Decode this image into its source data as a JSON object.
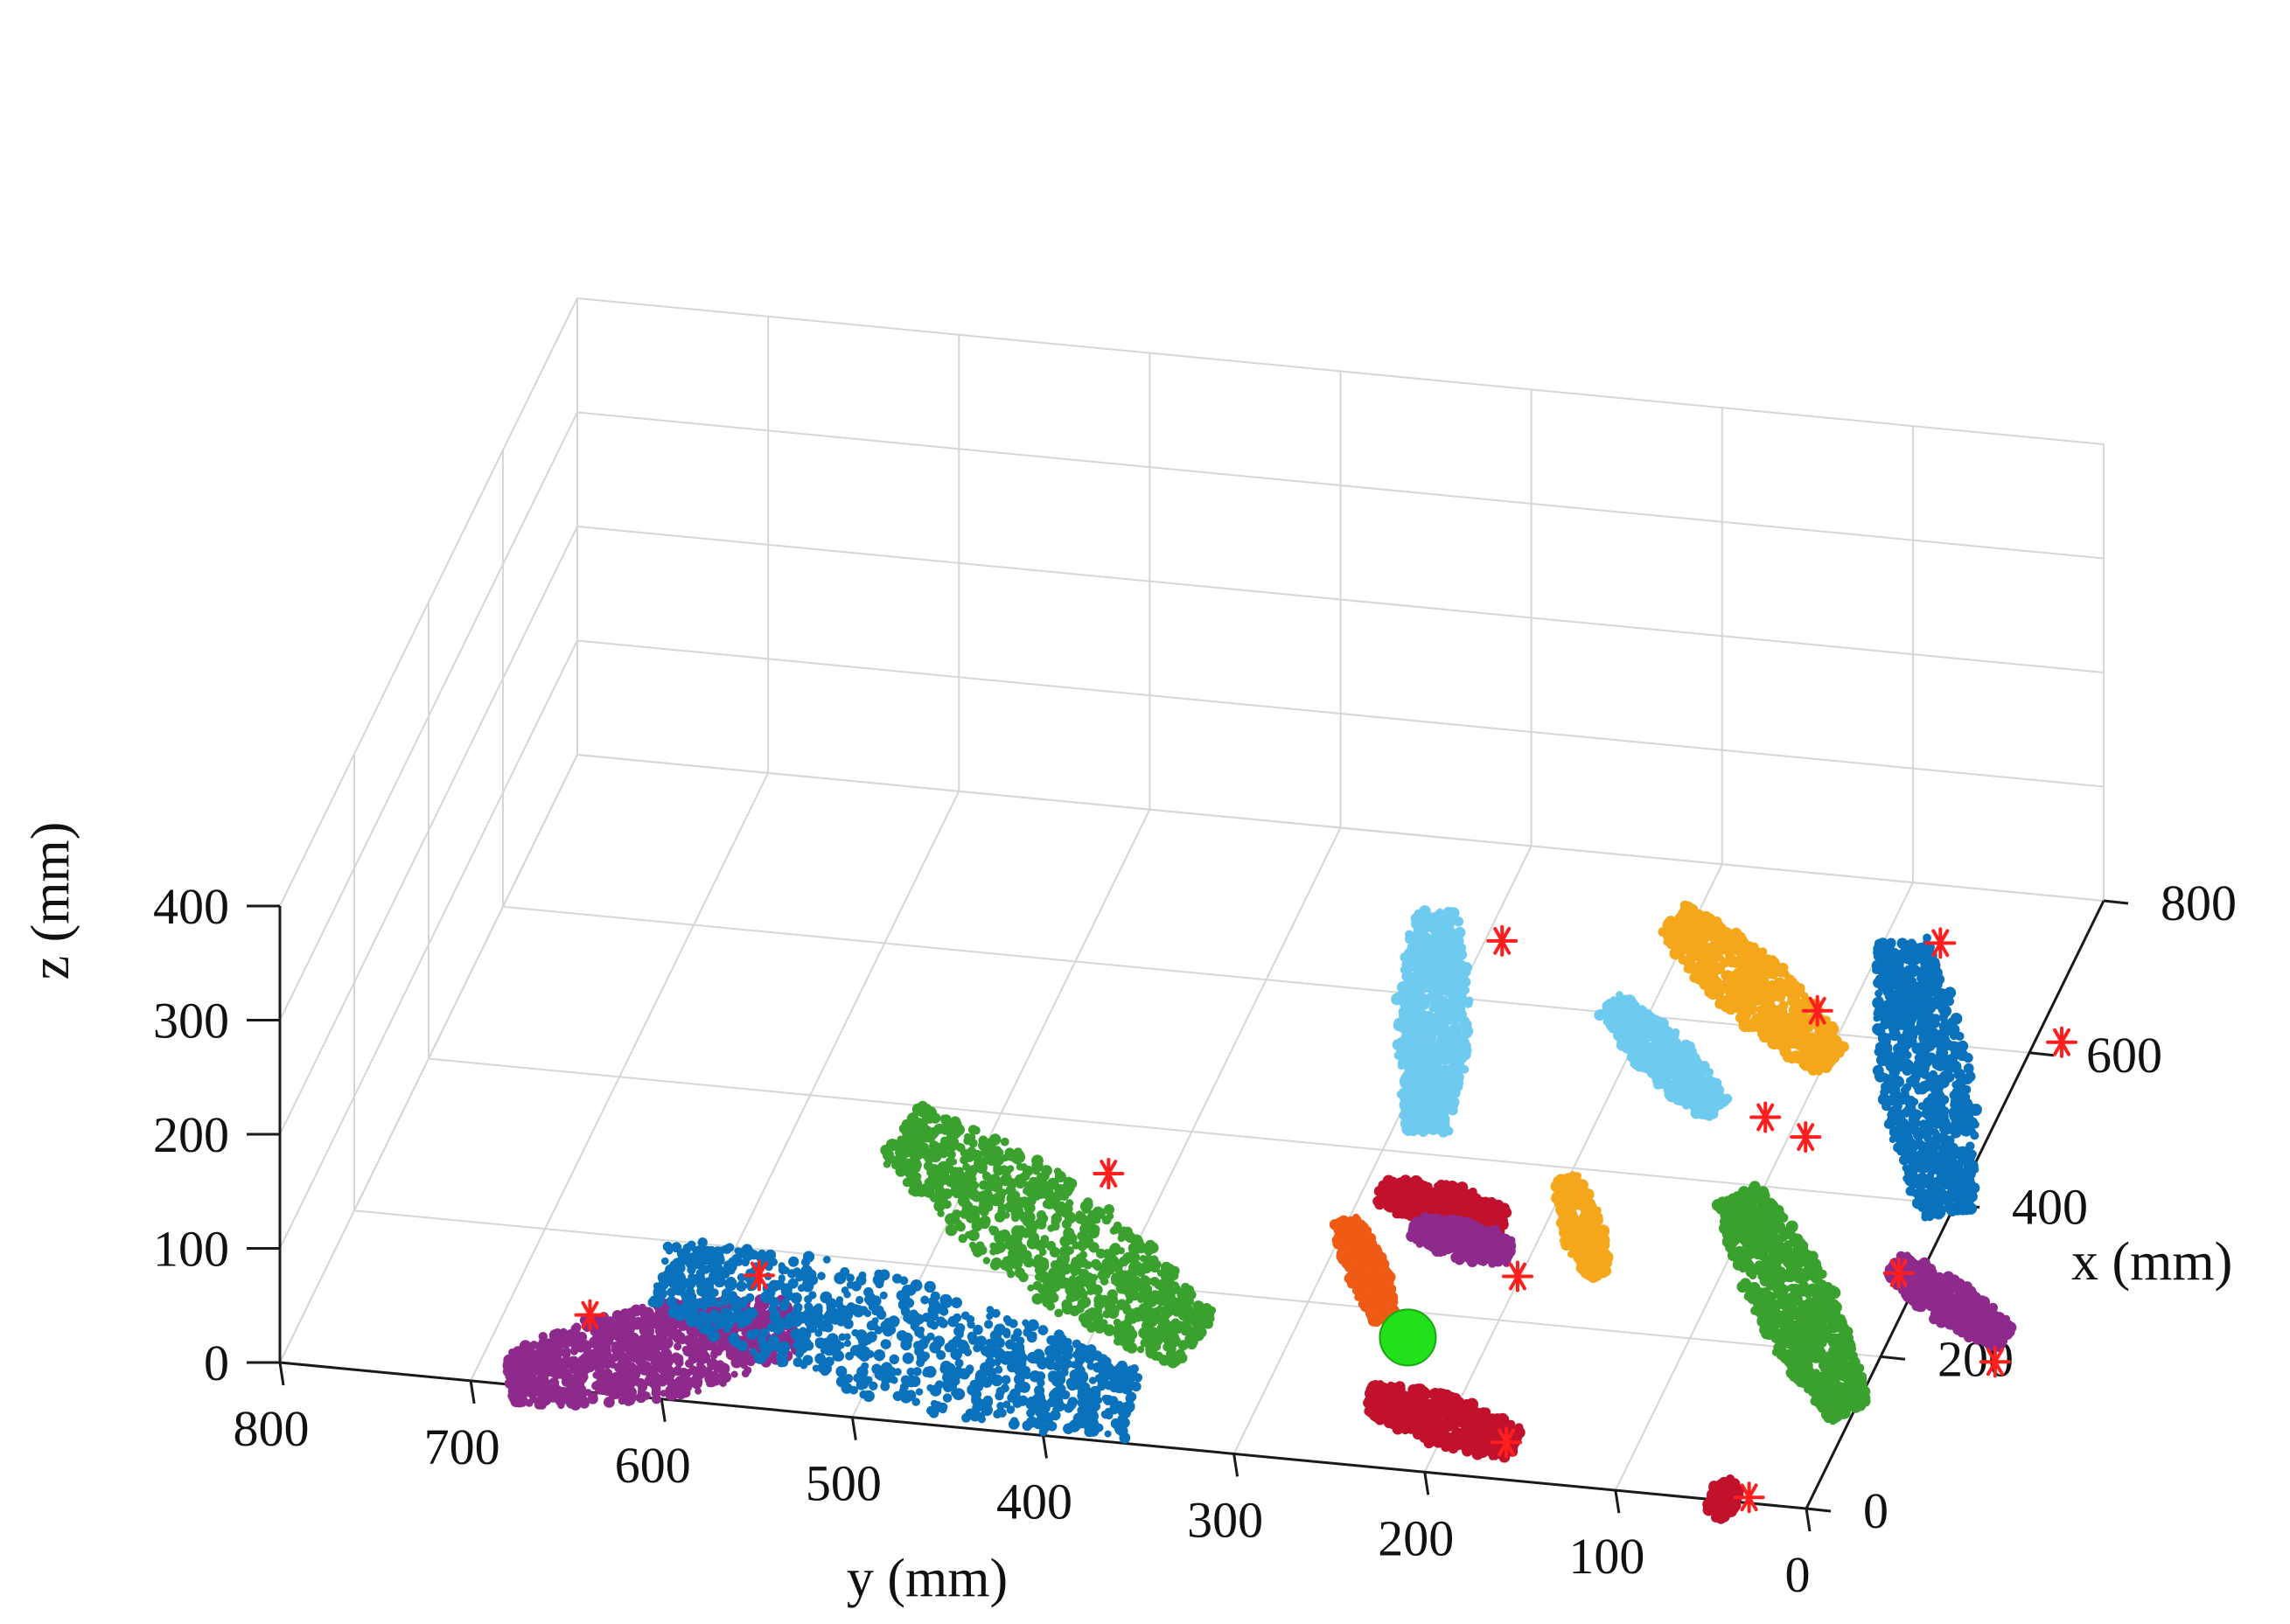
{
  "chart_data": {
    "type": "scatter",
    "subtype": "3d-point-cloud",
    "xlabel": "x (mm)",
    "ylabel": "y (mm)",
    "zlabel": "z (mm)",
    "xlim": [
      0,
      800
    ],
    "ylim": [
      0,
      800
    ],
    "zlim": [
      0,
      400
    ],
    "x_ticks": [
      "0",
      "200",
      "400",
      "600",
      "800"
    ],
    "y_ticks": [
      "0",
      "100",
      "200",
      "300",
      "400",
      "500",
      "600",
      "700",
      "800"
    ],
    "z_ticks": [
      "0",
      "100",
      "200",
      "300",
      "400"
    ],
    "grid": true,
    "legend": "none",
    "clusters": [
      {
        "color": "#8e2a8c",
        "x": [
          0,
          100
        ],
        "y": [
          680,
          550
        ],
        "z": 5
      },
      {
        "color": "#0a72bd",
        "x": [
          150,
          40
        ],
        "y": [
          630,
          360
        ],
        "z": 5
      },
      {
        "color": "#3aa12e",
        "x": [
          360,
          130
        ],
        "y": [
          545,
          345
        ],
        "z": 5
      },
      {
        "color": "#6fcaef",
        "x": [
          700,
          420
        ],
        "y": [
          330,
          280
        ],
        "z": 5
      },
      {
        "color": "#f4a71b",
        "x": [
          720,
          560
        ],
        "y": [
          210,
          95
        ],
        "z": 5
      },
      {
        "color": "#6fcaef",
        "x": [
          600,
          480
        ],
        "y": [
          220,
          140
        ],
        "z": 8
      },
      {
        "color": "#0a72bd",
        "x": [
          720,
          380
        ],
        "y": [
          90,
          0
        ],
        "z": 5
      },
      {
        "color": "#c2112c",
        "x": [
          340,
          320
        ],
        "y": [
          290,
          220
        ],
        "z": 5
      },
      {
        "color": "#8e2a8c",
        "x": [
          300,
          280
        ],
        "y": [
          265,
          210
        ],
        "z": 5
      },
      {
        "color": "#f4a71b",
        "x": [
          380,
          260
        ],
        "y": [
          200,
          160
        ],
        "z": 5
      },
      {
        "color": "#ef5a14",
        "x": [
          300,
          180
        ],
        "y": [
          300,
          255
        ],
        "z": 5
      },
      {
        "color": "#3aa12e",
        "x": [
          380,
          120
        ],
        "y": [
          110,
          0
        ],
        "z": 5
      },
      {
        "color": "#8e2a8c",
        "x": [
          310,
          230
        ],
        "y": [
          15,
          -60
        ],
        "z": 5
      },
      {
        "color": "#c2112c",
        "x": [
          80,
          40
        ],
        "y": [
          245,
          160
        ],
        "z": 5
      },
      {
        "color": "#c2112c",
        "x": [
          0,
          -10
        ],
        "y": [
          50,
          35
        ],
        "z": 5
      }
    ],
    "markers_red_star": [
      {
        "x": 670,
        "y": 290,
        "z": 5
      },
      {
        "x": 720,
        "y": 70,
        "z": 5
      },
      {
        "x": 620,
        "y": 115,
        "z": 5
      },
      {
        "x": 610,
        "y": -15,
        "z": 5
      },
      {
        "x": 480,
        "y": 115,
        "z": 5
      },
      {
        "x": 460,
        "y": 90,
        "z": 5
      },
      {
        "x": 330,
        "y": 430,
        "z": 5
      },
      {
        "x": 160,
        "y": 580,
        "z": 5
      },
      {
        "x": 90,
        "y": 655,
        "z": 5
      },
      {
        "x": 300,
        "y": 10,
        "z": 5
      },
      {
        "x": 250,
        "y": 200,
        "z": 5
      },
      {
        "x": 200,
        "y": -60,
        "z": 5
      },
      {
        "x": 40,
        "y": 165,
        "z": 5
      },
      {
        "x": 0,
        "y": 30,
        "z": 5
      }
    ],
    "marker_green": {
      "x": 160,
      "y": 240,
      "z": 5
    }
  }
}
